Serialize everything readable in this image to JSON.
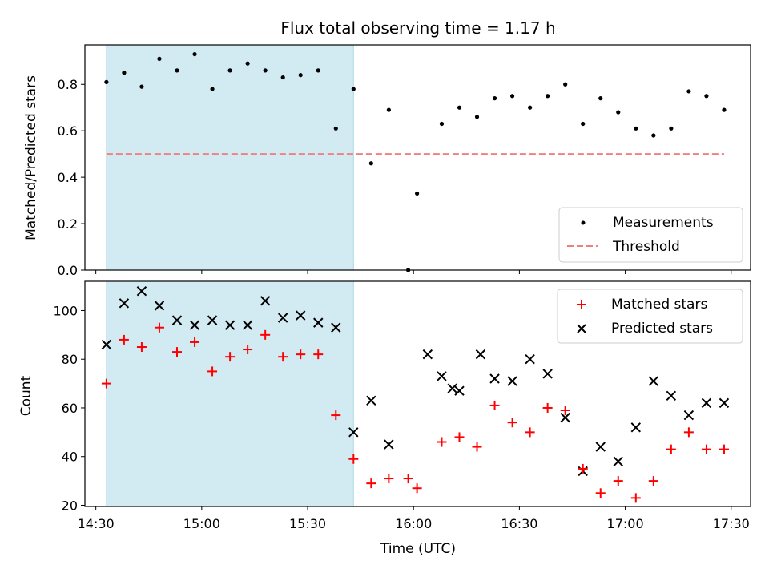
{
  "chart_data": {
    "type": "scatter",
    "title": "Flux total observing time = 1.17 h",
    "xlabel": "Time (UTC)",
    "x_ticks": [
      "14:30",
      "15:00",
      "15:30",
      "16:00",
      "16:30",
      "17:00",
      "17:30"
    ],
    "x_tick_minutes": [
      870,
      900,
      930,
      960,
      990,
      1020,
      1050
    ],
    "xlim_minutes": [
      866.9,
      1055.5
    ],
    "highlight_span_minutes": [
      873,
      943
    ],
    "highlight_color": "#add8e6",
    "times_minutes": [
      873,
      878,
      883,
      888,
      893,
      898,
      903,
      908,
      913,
      918,
      923,
      928,
      933,
      938,
      943,
      948,
      953,
      958,
      963,
      968,
      973,
      978,
      983,
      988,
      993,
      998,
      1003,
      1008,
      1013,
      1018,
      1023,
      1028,
      1033,
      1038,
      1043,
      1048
    ],
    "panels": [
      {
        "ylabel": "Matched/Predicted stars",
        "ylim": [
          0,
          0.97
        ],
        "yticks": [
          "0.0",
          "0.2",
          "0.4",
          "0.6",
          "0.8"
        ],
        "ytick_values": [
          0,
          0.2,
          0.4,
          0.6,
          0.8
        ],
        "series": [
          {
            "name": "Measurements",
            "marker": "dot",
            "color": "#000000",
            "values": [
              0.81,
              0.85,
              0.79,
              0.91,
              0.86,
              0.93,
              0.78,
              0.86,
              0.89,
              0.86,
              0.83,
              0.84,
              0.86,
              0.61,
              0.78,
              0.46,
              0.69,
              0.0,
              0.33,
              0.63,
              0.7,
              0.66,
              0.74,
              0.75,
              0.7,
              0.75,
              0.8,
              0.63,
              0.74,
              0.68,
              0.61,
              0.58,
              0.61,
              0.77,
              0.75,
              0.69
            ],
            "x_offsets": [
              0,
              0,
              0,
              0,
              0,
              0,
              0,
              0,
              0,
              0,
              0,
              0,
              0,
              0,
              0,
              0,
              0,
              0.5,
              -2,
              0,
              0,
              0,
              0,
              0,
              0,
              0,
              0,
              0,
              0,
              0,
              0,
              0,
              0,
              0,
              0,
              0
            ]
          },
          {
            "name": "Threshold",
            "marker": "dashed-line",
            "color": "#f08080",
            "value": 0.5,
            "x_range_minutes": [
              873,
              1048
            ]
          }
        ],
        "legend_position": "lower-right"
      },
      {
        "ylabel": "Count",
        "ylim": [
          19.5,
          112
        ],
        "yticks": [
          "20",
          "40",
          "60",
          "80",
          "100"
        ],
        "ytick_values": [
          20,
          40,
          60,
          80,
          100
        ],
        "series": [
          {
            "name": "Matched stars",
            "marker": "plus",
            "color": "#ff0000",
            "values": [
              70,
              88,
              85,
              93,
              83,
              87,
              75,
              81,
              84,
              90,
              81,
              82,
              82,
              57,
              39,
              29,
              31,
              31,
              27,
              46,
              48,
              44,
              61,
              54,
              50,
              60,
              59,
              35,
              25,
              30,
              23,
              30,
              43,
              50,
              43,
              43
            ],
            "x_offsets": [
              0,
              0,
              0,
              0,
              0,
              0,
              0,
              0,
              0,
              0,
              0,
              0,
              0,
              0,
              0,
              0,
              0,
              0.5,
              -2,
              0,
              0,
              0,
              0,
              0,
              0,
              0,
              0,
              0,
              0,
              0,
              0,
              0,
              0,
              0,
              0,
              0
            ]
          },
          {
            "name": "Predicted stars",
            "marker": "x",
            "color": "#000000",
            "values": [
              86,
              103,
              108,
              102,
              96,
              94,
              96,
              94,
              94,
              104,
              97,
              98,
              95,
              93,
              50,
              63,
              45,
              82,
              73,
              68,
              67,
              82,
              72,
              71,
              80,
              74,
              56,
              34,
              44,
              38,
              52,
              71,
              65,
              57,
              62,
              62
            ],
            "x_offsets": [
              0,
              0,
              0,
              0,
              0,
              0,
              0,
              0,
              0,
              0,
              0,
              0,
              0,
              0,
              0,
              0,
              0,
              6,
              5,
              3,
              0,
              1,
              0,
              0,
              0,
              0,
              0,
              0,
              0,
              0,
              0,
              0,
              0,
              0,
              0,
              0
            ]
          }
        ],
        "legend_position": "upper-right"
      }
    ]
  }
}
